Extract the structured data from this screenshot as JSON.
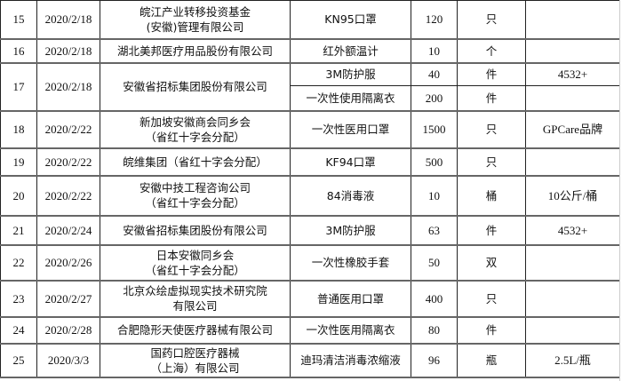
{
  "rows": [
    {
      "no": "15",
      "date": "2020/2/18",
      "donor": [
        "皖江产业转移投资基金",
        "(安徽)管理有限公司"
      ],
      "items": [
        {
          "name": "KN95口罩",
          "qty": "120",
          "unit": "只",
          "note": ""
        }
      ]
    },
    {
      "no": "16",
      "date": "2020/2/18",
      "donor": [
        "湖北美邦医疗用品股份有限公司"
      ],
      "items": [
        {
          "name": "红外额温计",
          "qty": "10",
          "unit": "个",
          "note": ""
        }
      ]
    },
    {
      "no": "17",
      "date": "2020/2/18",
      "donor": [
        "安徽省招标集团股份有限公司"
      ],
      "items": [
        {
          "name": "3M防护服",
          "qty": "40",
          "unit": "件",
          "note": "4532+"
        },
        {
          "name": "一次性使用隔离衣",
          "qty": "200",
          "unit": "件",
          "note": ""
        }
      ]
    },
    {
      "no": "18",
      "date": "2020/2/22",
      "donor": [
        "新加坡安徽商会同乡会",
        "（省红十字会分配）"
      ],
      "items": [
        {
          "name": "一次性医用口罩",
          "qty": "1500",
          "unit": "只",
          "note": "GPCare品牌"
        }
      ]
    },
    {
      "no": "19",
      "date": "2020/2/22",
      "donor": [
        "皖维集团（省红十字会分配）"
      ],
      "items": [
        {
          "name": "KF94口罩",
          "qty": "500",
          "unit": "只",
          "note": ""
        }
      ]
    },
    {
      "no": "20",
      "date": "2020/2/22",
      "donor": [
        "安徽中技工程咨询公司",
        "（省红十字会分配）"
      ],
      "items": [
        {
          "name": "84消毒液",
          "qty": "10",
          "unit": "桶",
          "note": "10公斤/桶"
        }
      ]
    },
    {
      "no": "21",
      "date": "2020/2/24",
      "donor": [
        "安徽省招标集团股份有限公司"
      ],
      "items": [
        {
          "name": "3M防护服",
          "qty": "63",
          "unit": "件",
          "note": "4532+"
        }
      ]
    },
    {
      "no": "22",
      "date": "2020/2/26",
      "donor": [
        "日本安徽同乡会",
        "（省红十字会分配）"
      ],
      "items": [
        {
          "name": "一次性橡胶手套",
          "qty": "50",
          "unit": "双",
          "note": ""
        }
      ]
    },
    {
      "no": "23",
      "date": "2020/2/27",
      "donor": [
        "北京众绘虚拟现实技术研究院",
        "有限公司"
      ],
      "items": [
        {
          "name": "普通医用口罩",
          "qty": "400",
          "unit": "只",
          "note": ""
        }
      ]
    },
    {
      "no": "24",
      "date": "2020/2/28",
      "donor": [
        "合肥隐形天使医疗器械有限公司"
      ],
      "items": [
        {
          "name": "一次性医用隔离衣",
          "qty": "80",
          "unit": "件",
          "note": ""
        }
      ]
    },
    {
      "no": "25",
      "date": "2020/3/3",
      "donor": [
        "国药口腔医疗器械",
        "（上海）有限公司"
      ],
      "items": [
        {
          "name": "迪玛清洁消毒浓缩液",
          "qty": "96",
          "unit": "瓶",
          "note": "2.5L/瓶"
        }
      ]
    }
  ]
}
